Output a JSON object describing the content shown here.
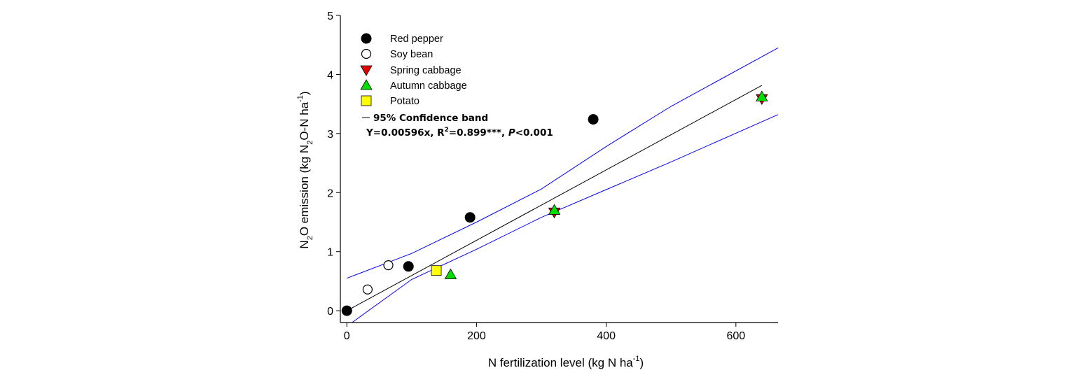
{
  "chart_data": {
    "type": "scatter",
    "xlabel": "N fertilization level (kg N ha",
    "xlabel_sup": "-1",
    "xlabel_end": ")",
    "ylabel_parts": [
      "N",
      "2",
      "O emission (kg N",
      "2",
      "O-N ha",
      "-1",
      ")"
    ],
    "xlim": [
      -10,
      665
    ],
    "ylim": [
      -0.2,
      5
    ],
    "x_ticks": [
      0,
      200,
      400,
      600
    ],
    "y_ticks": [
      0,
      1,
      2,
      3,
      4,
      5
    ],
    "grid": false,
    "legend_position": "top-left",
    "series": [
      {
        "name": "Red pepper",
        "marker": "circle-filled",
        "color": "#000000",
        "points": [
          [
            0,
            0.0
          ],
          [
            95,
            0.75
          ],
          [
            190,
            1.58
          ],
          [
            380,
            3.24
          ]
        ]
      },
      {
        "name": "Soy bean",
        "marker": "circle-open",
        "color": "#000000",
        "points": [
          [
            32,
            0.36
          ],
          [
            64,
            0.77
          ]
        ]
      },
      {
        "name": "Spring cabbage",
        "marker": "triangle-down",
        "color": "#e00000",
        "points": [
          [
            320,
            1.68
          ],
          [
            640,
            3.6
          ]
        ]
      },
      {
        "name": "Autumn cabbage",
        "marker": "triangle-up",
        "color": "#00dd00",
        "points": [
          [
            160,
            0.6
          ],
          [
            320,
            1.69
          ],
          [
            640,
            3.61
          ]
        ]
      },
      {
        "name": "Potato",
        "marker": "square",
        "color": "#ffff00",
        "points": [
          [
            138,
            0.68
          ]
        ]
      }
    ],
    "regression": {
      "slope": 0.00596,
      "x_range": [
        0,
        640
      ],
      "color": "#000000"
    },
    "confidence_band": {
      "color": "#0000ff",
      "upper": [
        [
          0,
          0.55
        ],
        [
          100,
          0.97
        ],
        [
          200,
          1.5
        ],
        [
          300,
          2.06
        ],
        [
          400,
          2.78
        ],
        [
          500,
          3.46
        ],
        [
          665,
          4.45
        ]
      ],
      "lower": [
        [
          8,
          -0.2
        ],
        [
          100,
          0.53
        ],
        [
          200,
          1.04
        ],
        [
          300,
          1.58
        ],
        [
          400,
          2.05
        ],
        [
          500,
          2.52
        ],
        [
          665,
          3.32
        ]
      ]
    },
    "legend": {
      "entries": [
        "Red pepper",
        "Soy bean",
        "Spring cabbage",
        "Autumn cabbage",
        "Potato"
      ],
      "line_label": "95% Confidence band",
      "equation": "Y=0.00596x,  R",
      "equation_sup": "2",
      "equation_rest": "=0.899***,  ",
      "p_symbol": "P",
      "p_value": "<0.001"
    }
  }
}
